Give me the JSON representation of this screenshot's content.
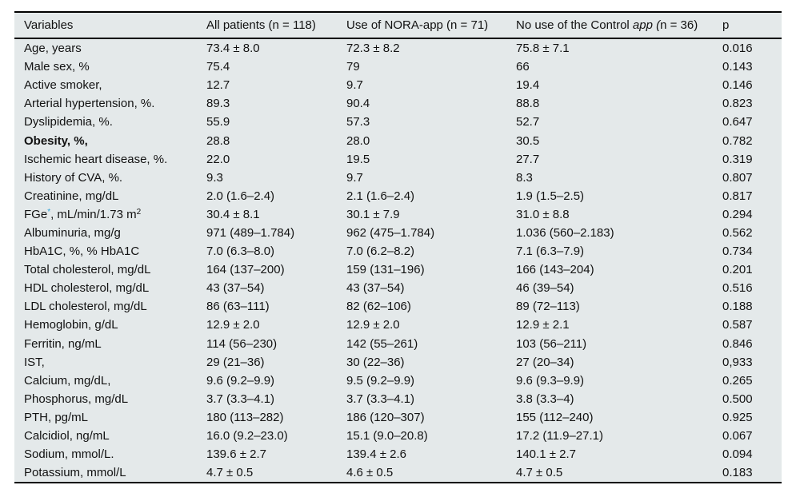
{
  "colors": {
    "table_background": "#e4e9ea",
    "rule": "#000000",
    "text": "#121212",
    "asterisk_accent": "#2e9fd4"
  },
  "table": {
    "columns": [
      {
        "label": "Variables"
      },
      {
        "label": "All patients (n = 118)"
      },
      {
        "label": "Use of NORA-app (n = 71)"
      },
      {
        "parts": [
          {
            "text": "No use of the Control "
          },
          {
            "text": "app (",
            "italic": true
          },
          {
            "text": "n = 36)"
          }
        ]
      },
      {
        "label": "p"
      }
    ],
    "rows": [
      {
        "variable": "Age, years",
        "all_patients": "73.4 ± 8.0",
        "nora_app": "72.3 ± 8.2",
        "control_app": "75.8 ± 7.1",
        "p": "0.016"
      },
      {
        "variable": "Male sex, %",
        "all_patients": "75.4",
        "nora_app": "79",
        "control_app": "66",
        "p": "0.143"
      },
      {
        "variable": "Active smoker,",
        "all_patients": "12.7",
        "nora_app": "9.7",
        "control_app": "19.4",
        "p": "0.146"
      },
      {
        "variable": "Arterial hypertension, %.",
        "all_patients": "89.3",
        "nora_app": "90.4",
        "control_app": "88.8",
        "p": "0.823"
      },
      {
        "variable": "Dyslipidemia, %.",
        "all_patients": "55.9",
        "nora_app": "57.3",
        "control_app": "52.7",
        "p": "0.647"
      },
      {
        "variable_parts": [
          {
            "text": "Obesity, %,",
            "bold": true
          }
        ],
        "all_patients": "28.8",
        "nora_app": "28.0",
        "control_app": "30.5",
        "p": "0.782"
      },
      {
        "variable": "Ischemic heart disease, %.",
        "all_patients": "22.0",
        "nora_app": "19.5",
        "control_app": "27.7",
        "p": "0.319"
      },
      {
        "variable": "History of CVA, %.",
        "all_patients": "9.3",
        "nora_app": "9.7",
        "control_app": "8.3",
        "p": "0.807"
      },
      {
        "variable": "Creatinine, mg/dL",
        "all_patients": "2.0 (1.6–2.4)",
        "nora_app": "2.1 (1.6–2.4)",
        "control_app": "1.9 (1.5–2.5)",
        "p": "0.817"
      },
      {
        "variable_parts": [
          {
            "text": "FGe"
          },
          {
            "text": "*",
            "sup": true,
            "accent": true
          },
          {
            "text": ", mL/min/1.73 m"
          },
          {
            "text": "2",
            "sup": true
          }
        ],
        "all_patients": "30.4 ± 8.1",
        "nora_app": "30.1 ± 7.9",
        "control_app": "31.0 ± 8.8",
        "p": "0.294"
      },
      {
        "variable": "Albuminuria, mg/g",
        "all_patients": "971 (489–1.784)",
        "nora_app": "962 (475–1.784)",
        "control_app": "1.036 (560–2.183)",
        "p": "0.562"
      },
      {
        "variable": "HbA1C, %, % HbA1C",
        "all_patients": "7.0 (6.3–8.0)",
        "nora_app": "7.0 (6.2–8.2)",
        "control_app": "7.1 (6.3–7.9)",
        "p": "0.734"
      },
      {
        "variable": "Total cholesterol, mg/dL",
        "all_patients": "164 (137–200)",
        "nora_app": "159 (131–196)",
        "control_app": "166 (143–204)",
        "p": "0.201"
      },
      {
        "variable": "HDL cholesterol, mg/dL",
        "all_patients": "43 (37–54)",
        "nora_app": "43 (37–54)",
        "control_app": "46 (39–54)",
        "p": "0.516"
      },
      {
        "variable": "LDL cholesterol, mg/dL",
        "all_patients": "86 (63–111)",
        "nora_app": "82 (62–106)",
        "control_app": "89 (72–113)",
        "p": "0.188"
      },
      {
        "variable": "Hemoglobin, g/dL",
        "all_patients": "12.9 ± 2.0",
        "nora_app": "12.9 ± 2.0",
        "control_app": "12.9 ± 2.1",
        "p": "0.587"
      },
      {
        "variable": "Ferritin, ng/mL",
        "all_patients": "114 (56–230)",
        "nora_app": "142 (55–261)",
        "control_app": "103 (56–211)",
        "p": "0.846"
      },
      {
        "variable": "IST,",
        "all_patients": "29 (21–36)",
        "nora_app": "30 (22–36)",
        "control_app": "27 (20–34)",
        "p": "0,933"
      },
      {
        "variable": "Calcium, mg/dL,",
        "all_patients": "9.6 (9.2–9.9)",
        "nora_app": "9.5 (9.2–9.9)",
        "control_app": "9.6 (9.3–9.9)",
        "p": "0.265"
      },
      {
        "variable": "Phosphorus, mg/dL",
        "all_patients": "3.7 (3.3–4.1)",
        "nora_app": "3.7 (3.3–4.1)",
        "control_app": "3.8 (3.3–4)",
        "p": "0.500"
      },
      {
        "variable": "PTH, pg/mL",
        "all_patients": "180 (113–282)",
        "nora_app": "186 (120–307)",
        "control_app": "155 (112–240)",
        "p": "0.925"
      },
      {
        "variable": "Calcidiol, ng/mL",
        "all_patients": "16.0 (9.2–23.0)",
        "nora_app": "15.1 (9.0–20.8)",
        "control_app": "17.2 (11.9–27.1)",
        "p": "0.067"
      },
      {
        "variable": "Sodium, mmol/L.",
        "all_patients": "139.6 ± 2.7",
        "nora_app": "139.4 ± 2.6",
        "control_app": "140.1 ± 2.7",
        "p": "0.094"
      },
      {
        "variable": "Potassium, mmol/L",
        "all_patients": "4.7 ± 0.5",
        "nora_app": "4.6 ± 0.5",
        "control_app": "4.7 ± 0.5",
        "p": "0.183"
      }
    ]
  }
}
